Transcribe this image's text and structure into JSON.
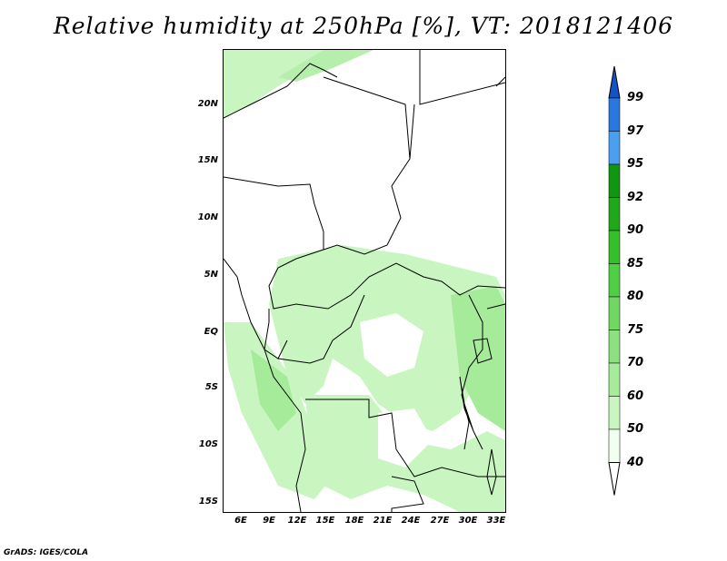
{
  "title": "Relative humidity at 250hPa [%], VT: 2018121406",
  "footer": "GrADS: IGES/COLA",
  "map": {
    "lat_labels": [
      "20N",
      "15N",
      "10N",
      "5N",
      "EQ",
      "5S",
      "10S",
      "15S"
    ],
    "lon_labels": [
      "6E",
      "9E",
      "12E",
      "15E",
      "18E",
      "21E",
      "24E",
      "27E",
      "30E",
      "33E"
    ]
  },
  "legend": {
    "levels": [
      "40",
      "50",
      "60",
      "70",
      "75",
      "80",
      "85",
      "90",
      "92",
      "95",
      "97",
      "99"
    ],
    "colors": [
      "#f0fff0",
      "#c8f5c0",
      "#a5eb9a",
      "#8de080",
      "#70d862",
      "#50cf44",
      "#35bf2a",
      "#20a81a",
      "#109610",
      "#4a9ff0",
      "#2878e0",
      "#1452c8"
    ]
  }
}
